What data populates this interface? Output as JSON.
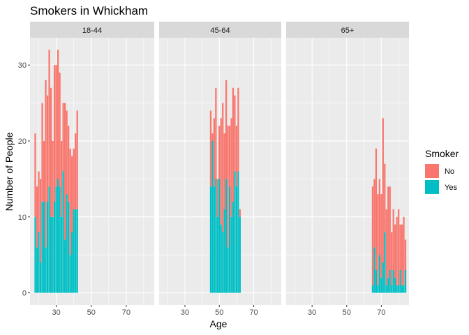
{
  "chart_data": {
    "type": "bar",
    "stacked": true,
    "title": "Smokers in Whickham",
    "xlabel": "Age",
    "ylabel": "Number of People",
    "xlim": [
      15,
      86
    ],
    "ylim": [
      -1.6,
      33.6
    ],
    "x_ticks": [
      30,
      50,
      70
    ],
    "y_ticks": [
      0,
      10,
      20,
      30
    ],
    "grid": true,
    "legend": {
      "title": "Smoker",
      "position": "right",
      "entries": [
        {
          "label": "No",
          "color": "#F8766D"
        },
        {
          "label": "Yes",
          "color": "#00BFC4"
        }
      ]
    },
    "facets": [
      {
        "label": "18-44",
        "bars": [
          {
            "age": 18,
            "yes": 10,
            "no": 11
          },
          {
            "age": 19,
            "yes": 6,
            "no": 8
          },
          {
            "age": 20,
            "yes": 8,
            "no": 8
          },
          {
            "age": 21,
            "yes": 4,
            "no": 11
          },
          {
            "age": 22,
            "yes": 12,
            "no": 13
          },
          {
            "age": 23,
            "yes": 12,
            "no": 8
          },
          {
            "age": 24,
            "yes": 6,
            "no": 22
          },
          {
            "age": 25,
            "yes": 12,
            "no": 14
          },
          {
            "age": 26,
            "yes": 14,
            "no": 18
          },
          {
            "age": 27,
            "yes": 10,
            "no": 17
          },
          {
            "age": 28,
            "yes": 10,
            "no": 10
          },
          {
            "age": 29,
            "yes": 12,
            "no": 18
          },
          {
            "age": 30,
            "yes": 14,
            "no": 16
          },
          {
            "age": 31,
            "yes": 15,
            "no": 17
          },
          {
            "age": 32,
            "yes": 14,
            "no": 15
          },
          {
            "age": 33,
            "yes": 10,
            "no": 10
          },
          {
            "age": 34,
            "yes": 16,
            "no": 9
          },
          {
            "age": 35,
            "yes": 7,
            "no": 18
          },
          {
            "age": 36,
            "yes": 13,
            "no": 11
          },
          {
            "age": 37,
            "yes": 12,
            "no": 10
          },
          {
            "age": 38,
            "yes": 5,
            "no": 14
          },
          {
            "age": 39,
            "yes": 8,
            "no": 10
          },
          {
            "age": 40,
            "yes": 11,
            "no": 8
          },
          {
            "age": 41,
            "yes": 11,
            "no": 10
          },
          {
            "age": 42,
            "yes": 11,
            "no": 13
          }
        ]
      },
      {
        "label": "45-64",
        "bars": [
          {
            "age": 45,
            "yes": 14,
            "no": 10
          },
          {
            "age": 46,
            "yes": 20,
            "no": 1
          },
          {
            "age": 47,
            "yes": 14,
            "no": 9
          },
          {
            "age": 48,
            "yes": 15,
            "no": 12
          },
          {
            "age": 49,
            "yes": 10,
            "no": 5
          },
          {
            "age": 50,
            "yes": 15,
            "no": 7
          },
          {
            "age": 51,
            "yes": 9,
            "no": 14
          },
          {
            "age": 52,
            "yes": 8,
            "no": 17
          },
          {
            "age": 53,
            "yes": 11,
            "no": 10
          },
          {
            "age": 54,
            "yes": 15,
            "no": 13
          },
          {
            "age": 55,
            "yes": 6,
            "no": 16
          },
          {
            "age": 56,
            "yes": 14,
            "no": 8
          },
          {
            "age": 57,
            "yes": 10,
            "no": 13
          },
          {
            "age": 58,
            "yes": 12,
            "no": 15
          },
          {
            "age": 59,
            "yes": 16,
            "no": 10
          },
          {
            "age": 60,
            "yes": 14,
            "no": 8
          },
          {
            "age": 61,
            "yes": 16,
            "no": 11
          },
          {
            "age": 62,
            "yes": 10,
            "no": 1
          }
        ]
      },
      {
        "label": "65+",
        "bars": [
          {
            "age": 65,
            "yes": 1,
            "no": 13
          },
          {
            "age": 66,
            "yes": 6,
            "no": 9
          },
          {
            "age": 67,
            "yes": 3,
            "no": 16
          },
          {
            "age": 68,
            "yes": 1,
            "no": 12
          },
          {
            "age": 69,
            "yes": 5,
            "no": 10
          },
          {
            "age": 70,
            "yes": 2,
            "no": 11
          },
          {
            "age": 71,
            "yes": 4,
            "no": 19
          },
          {
            "age": 72,
            "yes": 8,
            "no": 9
          },
          {
            "age": 73,
            "yes": 1,
            "no": 10
          },
          {
            "age": 74,
            "yes": 2,
            "no": 12
          },
          {
            "age": 75,
            "yes": 3,
            "no": 11
          },
          {
            "age": 76,
            "yes": 1,
            "no": 7
          },
          {
            "age": 77,
            "yes": 3,
            "no": 8
          },
          {
            "age": 78,
            "yes": 2,
            "no": 7
          },
          {
            "age": 79,
            "yes": 1,
            "no": 9
          },
          {
            "age": 80,
            "yes": 1,
            "no": 10
          },
          {
            "age": 81,
            "yes": 3,
            "no": 6
          },
          {
            "age": 82,
            "yes": 1,
            "no": 8
          },
          {
            "age": 83,
            "yes": 1,
            "no": 9
          },
          {
            "age": 84,
            "yes": 3,
            "no": 4
          }
        ]
      }
    ]
  }
}
